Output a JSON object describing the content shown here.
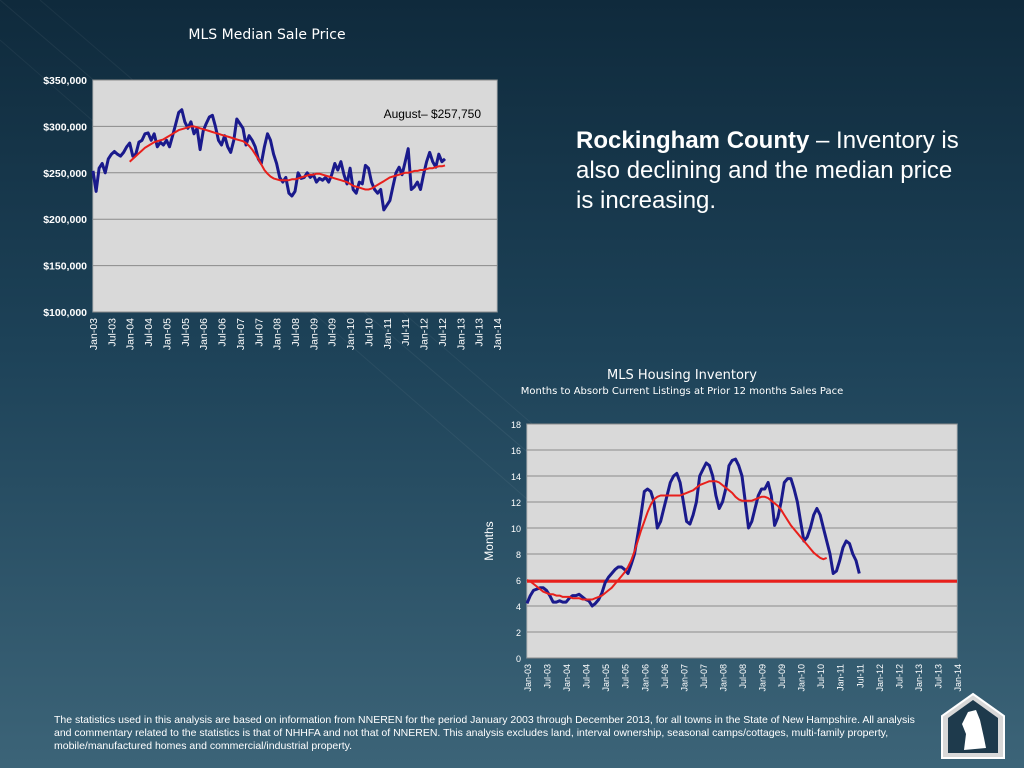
{
  "headline": {
    "bold": "Rockingham County",
    "rest": " – Inventory is also declining and the median price is increasing."
  },
  "footnote": "The statistics used in this analysis are based on information from NNEREN for the period January 2003 through December 2013, for all towns in the State of New Hampshire. All analysis and commentary related to the statistics is that of NHHFA and not that of NNEREN. This analysis excludes land, interval ownership, seasonal camps/cottages, multi-family property, mobile/manufactured homes and commercial/industrial property.",
  "colors": {
    "plot_bg": "#d9d9d9",
    "series_line": "#1a1a8c",
    "trend_line": "#e8201c",
    "text": "#ffffff"
  },
  "chart_data": [
    {
      "type": "line",
      "title": "MLS Median Sale Price",
      "annotation": "August–  $257,750",
      "yticks": [
        "$350,000",
        "$300,000",
        "$250,000",
        "$200,000",
        "$150,000",
        "$100,000"
      ],
      "xticks": [
        "Jan-03",
        "Jul-03",
        "Jan-04",
        "Jul-04",
        "Jan-05",
        "Jul-05",
        "Jan-06",
        "Jul-06",
        "Jan-07",
        "Jul-07",
        "Jan-08",
        "Jul-08",
        "Jan-09",
        "Jul-09",
        "Jan-10",
        "Jul-10",
        "Jan-11",
        "Jul-11",
        "Jan-12",
        "Jul-12",
        "Jan-13",
        "Jul-13",
        "Jan-14"
      ],
      "ylim": [
        100000,
        350000
      ],
      "x_start": "2003-01",
      "series": [
        {
          "name": "",
          "values": [
            252000,
            230000,
            255000,
            260000,
            250000,
            265000,
            270000,
            273000,
            270000,
            268000,
            272000,
            278000,
            282000,
            268000,
            270000,
            283000,
            285000,
            292000,
            293000,
            285000,
            292000,
            278000,
            283000,
            280000,
            285000,
            278000,
            290000,
            302000,
            315000,
            318000,
            305000,
            298000,
            305000,
            292000,
            298000,
            275000,
            295000,
            303000,
            310000,
            312000,
            300000,
            285000,
            280000,
            290000,
            278000,
            272000,
            285000,
            308000,
            303000,
            298000,
            280000,
            290000,
            285000,
            278000,
            265000,
            260000,
            278000,
            292000,
            285000,
            270000,
            260000,
            245000,
            240000,
            245000,
            228000,
            225000,
            230000,
            250000,
            244000,
            245000,
            250000,
            245000,
            248000,
            240000,
            244000,
            242000,
            245000,
            240000,
            248000,
            260000,
            253000,
            262000,
            248000,
            238000,
            255000,
            232000,
            228000,
            240000,
            238000,
            258000,
            255000,
            240000,
            232000,
            228000,
            232000,
            210000,
            215000,
            220000,
            235000,
            250000,
            256000,
            248000,
            262000,
            276000,
            232000,
            235000,
            240000,
            232000,
            248000,
            262000,
            272000,
            262000,
            256000,
            270000,
            262000,
            265000
          ]
        },
        {
          "name": "",
          "values_start_index": 12,
          "values": [
            262000,
            265000,
            268000,
            271000,
            274000,
            277000,
            279000,
            281000,
            283000,
            284000,
            285000,
            286000,
            288000,
            290000,
            292000,
            294000,
            296000,
            297000,
            298000,
            299000,
            300000,
            300000,
            299000,
            298000,
            297000,
            296000,
            295000,
            294000,
            293000,
            292000,
            291000,
            290000,
            289000,
            288000,
            287000,
            286000,
            285000,
            284000,
            282000,
            279000,
            275000,
            270000,
            265000,
            259000,
            253000,
            249000,
            246000,
            244000,
            243000,
            242000,
            242000,
            242000,
            242000,
            243000,
            243000,
            244000,
            245000,
            246000,
            247000,
            248000,
            248000,
            249000,
            249000,
            248000,
            247000,
            246000,
            245000,
            244000,
            243000,
            242000,
            241000,
            240000,
            238000,
            236000,
            235000,
            234000,
            233000,
            232000,
            232000,
            233000,
            235000,
            237000,
            239000,
            241000,
            243000,
            245000,
            246000,
            247000,
            248000,
            249000,
            250000,
            250000,
            251000,
            252000,
            252000,
            253000,
            253000,
            254000,
            255000,
            255000,
            256000,
            257000,
            257000,
            258000
          ]
        }
      ]
    },
    {
      "type": "line",
      "title": "MLS Housing Inventory",
      "subtitle": "Months to Absorb Current Listings at Prior 12 months Sales Pace",
      "ylabel": "Months",
      "yticks": [
        "18",
        "16",
        "14",
        "12",
        "10",
        "8",
        "6",
        "4",
        "2",
        "0"
      ],
      "xticks": [
        "Jan-03",
        "Jul-03",
        "Jan-04",
        "Jul-04",
        "Jan-05",
        "Jul-05",
        "Jan-06",
        "Jul-06",
        "Jan-07",
        "Jul-07",
        "Jan-08",
        "Jul-08",
        "Jan-09",
        "Jul-09",
        "Jan-10",
        "Jul-10",
        "Jan-11",
        "Jul-11",
        "Jan-12",
        "Jul-12",
        "Jan-13",
        "Jul-13",
        "Jan-14"
      ],
      "ylim": [
        0,
        18
      ],
      "reference_line": 5.9,
      "series": [
        {
          "name": "",
          "values": [
            4.2,
            4.8,
            5.2,
            5.3,
            5.4,
            5.4,
            5.2,
            4.8,
            4.3,
            4.3,
            4.4,
            4.3,
            4.3,
            4.6,
            4.8,
            4.8,
            4.9,
            4.7,
            4.5,
            4.4,
            4.0,
            4.2,
            4.5,
            5.0,
            5.8,
            6.2,
            6.5,
            6.8,
            7.0,
            7.0,
            6.8,
            6.5,
            7.2,
            8.0,
            9.5,
            11.0,
            12.8,
            13.0,
            12.8,
            12.0,
            10.0,
            10.5,
            11.5,
            12.5,
            13.5,
            14.0,
            14.2,
            13.5,
            12.0,
            10.5,
            10.3,
            11.0,
            12.0,
            14.0,
            14.5,
            15.0,
            14.8,
            14.0,
            12.5,
            11.5,
            12.0,
            13.0,
            14.8,
            15.2,
            15.3,
            14.8,
            14.0,
            12.0,
            10.0,
            10.5,
            11.5,
            12.5,
            13.0,
            13.0,
            13.5,
            12.5,
            10.2,
            10.8,
            12.0,
            13.5,
            13.8,
            13.8,
            13.0,
            12.0,
            10.5,
            9.0,
            9.3,
            10.0,
            11.0,
            11.5,
            11.0,
            10.0,
            9.0,
            8.0,
            6.5,
            6.7,
            7.5,
            8.5,
            9.0,
            8.8,
            8.0,
            7.5,
            6.5
          ]
        },
        {
          "name": "",
          "values": [
            6.0,
            5.9,
            5.7,
            5.5,
            5.3,
            5.1,
            5.0,
            4.9,
            4.9,
            4.8,
            4.8,
            4.7,
            4.7,
            4.7,
            4.6,
            4.6,
            4.6,
            4.5,
            4.5,
            4.5,
            4.5,
            4.6,
            4.7,
            4.8,
            5.0,
            5.2,
            5.4,
            5.7,
            6.0,
            6.3,
            6.6,
            7.0,
            7.5,
            8.2,
            9.0,
            9.8,
            10.5,
            11.2,
            11.8,
            12.2,
            12.4,
            12.5,
            12.5,
            12.5,
            12.5,
            12.5,
            12.5,
            12.5,
            12.6,
            12.7,
            12.8,
            12.9,
            13.1,
            13.3,
            13.4,
            13.5,
            13.6,
            13.6,
            13.6,
            13.5,
            13.3,
            13.1,
            12.9,
            12.7,
            12.4,
            12.2,
            12.1,
            12.1,
            12.1,
            12.1,
            12.2,
            12.3,
            12.4,
            12.4,
            12.3,
            12.1,
            11.9,
            11.7,
            11.4,
            11.0,
            10.6,
            10.2,
            9.9,
            9.6,
            9.3,
            9.0,
            8.7,
            8.4,
            8.1,
            7.9,
            7.7,
            7.6,
            7.7
          ]
        }
      ]
    }
  ]
}
